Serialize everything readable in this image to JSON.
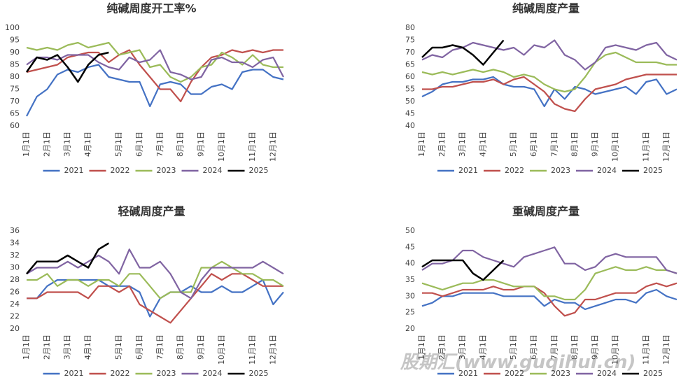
{
  "watermark": "股期汇(www.guqihui.cn)",
  "chart_data": [
    {
      "type": "line",
      "title": "纯碱周度开工率%",
      "grid": false,
      "categories": [
        "1月1日",
        null,
        "2月1日",
        null,
        "3月1日",
        null,
        "4月1日",
        null,
        null,
        "5月1日",
        null,
        "6月1日",
        null,
        "7月1日",
        null,
        "8月1日",
        null,
        "9月1日",
        null,
        "10月1日",
        null,
        null,
        "11月1日",
        null,
        "12月1日",
        null
      ],
      "ylim": [
        60,
        100
      ],
      "yticks": [
        60,
        65,
        70,
        75,
        80,
        85,
        90,
        95,
        100
      ],
      "series": [
        {
          "name": "2021",
          "color": "#4472c4",
          "values": [
            64,
            72,
            75,
            81,
            83,
            82,
            84,
            85,
            80,
            79,
            78,
            78,
            68,
            77,
            78,
            77,
            73,
            73,
            76,
            77,
            75,
            82,
            83,
            83,
            80,
            79
          ]
        },
        {
          "name": "2022",
          "color": "#c0504d",
          "values": [
            82,
            83,
            84,
            85,
            88,
            89,
            90,
            90,
            86,
            89,
            91,
            85,
            80,
            75,
            75,
            70,
            78,
            84,
            88,
            89,
            91,
            90,
            91,
            90,
            91,
            91
          ]
        },
        {
          "name": "2023",
          "color": "#9bbb59",
          "values": [
            92,
            91,
            92,
            91,
            93,
            94,
            92,
            93,
            94,
            89,
            90,
            91,
            84,
            85,
            80,
            78,
            80,
            84,
            85,
            90,
            88,
            85,
            89,
            85,
            84,
            84
          ]
        },
        {
          "name": "2024",
          "color": "#8064a2",
          "values": [
            85,
            88,
            88,
            87,
            89,
            89,
            89,
            86,
            84,
            83,
            88,
            86,
            87,
            91,
            82,
            81,
            79,
            80,
            87,
            88,
            86,
            86,
            84,
            87,
            88,
            80
          ]
        },
        {
          "name": "2025",
          "color": "#000000",
          "values": [
            82,
            88,
            87,
            89,
            84,
            78,
            85,
            89,
            90,
            null,
            null,
            null,
            null,
            null,
            null,
            null,
            null,
            null,
            null,
            null,
            null,
            null,
            null,
            null,
            null,
            null
          ]
        }
      ]
    },
    {
      "type": "line",
      "title": "纯碱周度产量",
      "grid": false,
      "categories": [
        "1月1日",
        null,
        "2月1日",
        null,
        "3月1日",
        null,
        "4月1日",
        null,
        null,
        "5月1日",
        null,
        "6月1日",
        null,
        "7月1日",
        null,
        "8月1日",
        null,
        "9月1日",
        null,
        "10月1日",
        null,
        null,
        "11月1日",
        null,
        "12月1日",
        null
      ],
      "ylim": [
        40,
        80
      ],
      "yticks": [
        40,
        45,
        50,
        55,
        60,
        65,
        70,
        75,
        80
      ],
      "series": [
        {
          "name": "2021",
          "color": "#4472c4",
          "values": [
            52,
            54,
            57,
            58,
            58,
            59,
            59,
            60,
            57,
            56,
            56,
            55,
            48,
            55,
            51,
            56,
            55,
            53,
            54,
            55,
            56,
            53,
            58,
            59,
            53,
            55
          ]
        },
        {
          "name": "2022",
          "color": "#c0504d",
          "values": [
            55,
            55,
            56,
            56,
            57,
            58,
            58,
            59,
            57,
            59,
            60,
            57,
            54,
            49,
            47,
            46,
            51,
            55,
            56,
            57,
            59,
            60,
            61,
            61,
            61,
            61
          ]
        },
        {
          "name": "2023",
          "color": "#9bbb59",
          "values": [
            62,
            61,
            62,
            61,
            62,
            63,
            62,
            63,
            62,
            60,
            61,
            60,
            57,
            55,
            54,
            55,
            60,
            66,
            69,
            70,
            68,
            66,
            66,
            66,
            65,
            65
          ]
        },
        {
          "name": "2024",
          "color": "#8064a2",
          "values": [
            67,
            69,
            68,
            71,
            72,
            74,
            73,
            72,
            71,
            72,
            69,
            73,
            72,
            75,
            69,
            67,
            63,
            66,
            72,
            73,
            72,
            71,
            73,
            74,
            69,
            67
          ]
        },
        {
          "name": "2025",
          "color": "#000000",
          "values": [
            68,
            72,
            72,
            73,
            72,
            69,
            65,
            70,
            75,
            null,
            null,
            null,
            null,
            null,
            null,
            null,
            null,
            null,
            null,
            null,
            null,
            null,
            null,
            null,
            null,
            null
          ]
        }
      ]
    },
    {
      "type": "line",
      "title": "轻碱周度产量",
      "grid": false,
      "categories": [
        "1月1日",
        null,
        "2月1日",
        null,
        "3月1日",
        null,
        "4月1日",
        null,
        null,
        "5月1日",
        null,
        "6月1日",
        null,
        "7月1日",
        null,
        "8月1日",
        null,
        "9月1日",
        null,
        "10月1日",
        null,
        null,
        "11月1日",
        null,
        "12月1日",
        null
      ],
      "ylim": [
        20,
        36
      ],
      "yticks": [
        20,
        22,
        24,
        26,
        28,
        30,
        32,
        34,
        36
      ],
      "series": [
        {
          "name": "2021",
          "color": "#4472c4",
          "values": [
            25,
            25,
            27,
            28,
            28,
            28,
            28,
            28,
            27,
            27,
            27,
            26,
            22,
            25,
            26,
            26,
            27,
            26,
            26,
            27,
            26,
            26,
            27,
            28,
            24,
            26
          ]
        },
        {
          "name": "2022",
          "color": "#c0504d",
          "values": [
            25,
            25,
            26,
            26,
            26,
            26,
            25,
            27,
            27,
            26,
            27,
            24,
            23,
            22,
            21,
            23,
            25,
            27,
            29,
            28,
            29,
            29,
            28,
            27,
            27,
            27
          ]
        },
        {
          "name": "2023",
          "color": "#9bbb59",
          "values": [
            28,
            28,
            29,
            27,
            28,
            28,
            27,
            28,
            28,
            27,
            29,
            29,
            27,
            25,
            26,
            26,
            26,
            30,
            30,
            31,
            30,
            29,
            29,
            28,
            28,
            27
          ]
        },
        {
          "name": "2024",
          "color": "#8064a2",
          "values": [
            29,
            30,
            30,
            30,
            31,
            30,
            31,
            32,
            31,
            29,
            33,
            30,
            30,
            31,
            29,
            26,
            25,
            28,
            30,
            30,
            30,
            30,
            30,
            31,
            30,
            29
          ]
        },
        {
          "name": "2025",
          "color": "#000000",
          "values": [
            29,
            31,
            31,
            31,
            32,
            31,
            30,
            33,
            34,
            null,
            null,
            null,
            null,
            null,
            null,
            null,
            null,
            null,
            null,
            null,
            null,
            null,
            null,
            null,
            null,
            null
          ]
        }
      ]
    },
    {
      "type": "line",
      "title": "重碱周度产量",
      "grid": false,
      "categories": [
        "1月1日",
        null,
        "2月1日",
        null,
        "3月1日",
        null,
        "4月1日",
        null,
        null,
        "5月1日",
        null,
        "6月1日",
        null,
        "7月1日",
        null,
        "8月1日",
        null,
        "9月1日",
        null,
        "10月1日",
        null,
        null,
        "11月1日",
        null,
        "12月1日",
        null
      ],
      "ylim": [
        20,
        50
      ],
      "yticks": [
        20,
        25,
        30,
        35,
        40,
        45,
        50
      ],
      "series": [
        {
          "name": "2021",
          "color": "#4472c4",
          "values": [
            27,
            28,
            30,
            30,
            31,
            31,
            31,
            31,
            30,
            30,
            30,
            30,
            27,
            29,
            28,
            28,
            26,
            27,
            28,
            29,
            29,
            28,
            31,
            32,
            30,
            29
          ]
        },
        {
          "name": "2022",
          "color": "#c0504d",
          "values": [
            31,
            31,
            30,
            31,
            32,
            32,
            32,
            33,
            32,
            32,
            33,
            33,
            31,
            27,
            24,
            25,
            29,
            29,
            30,
            31,
            31,
            31,
            33,
            34,
            33,
            34
          ]
        },
        {
          "name": "2023",
          "color": "#9bbb59",
          "values": [
            34,
            33,
            32,
            33,
            34,
            34,
            35,
            35,
            34,
            33,
            33,
            33,
            30,
            30,
            29,
            29,
            32,
            37,
            38,
            39,
            38,
            38,
            39,
            38,
            38,
            37
          ]
        },
        {
          "name": "2024",
          "color": "#8064a2",
          "values": [
            38,
            40,
            40,
            41,
            44,
            44,
            42,
            41,
            40,
            39,
            42,
            43,
            44,
            45,
            40,
            40,
            38,
            39,
            42,
            43,
            42,
            42,
            42,
            42,
            38,
            37
          ]
        },
        {
          "name": "2025",
          "color": "#000000",
          "values": [
            39,
            41,
            41,
            41,
            41,
            37,
            35,
            38,
            41,
            null,
            null,
            null,
            null,
            null,
            null,
            null,
            null,
            null,
            null,
            null,
            null,
            null,
            null,
            null,
            null,
            null
          ]
        }
      ]
    }
  ]
}
